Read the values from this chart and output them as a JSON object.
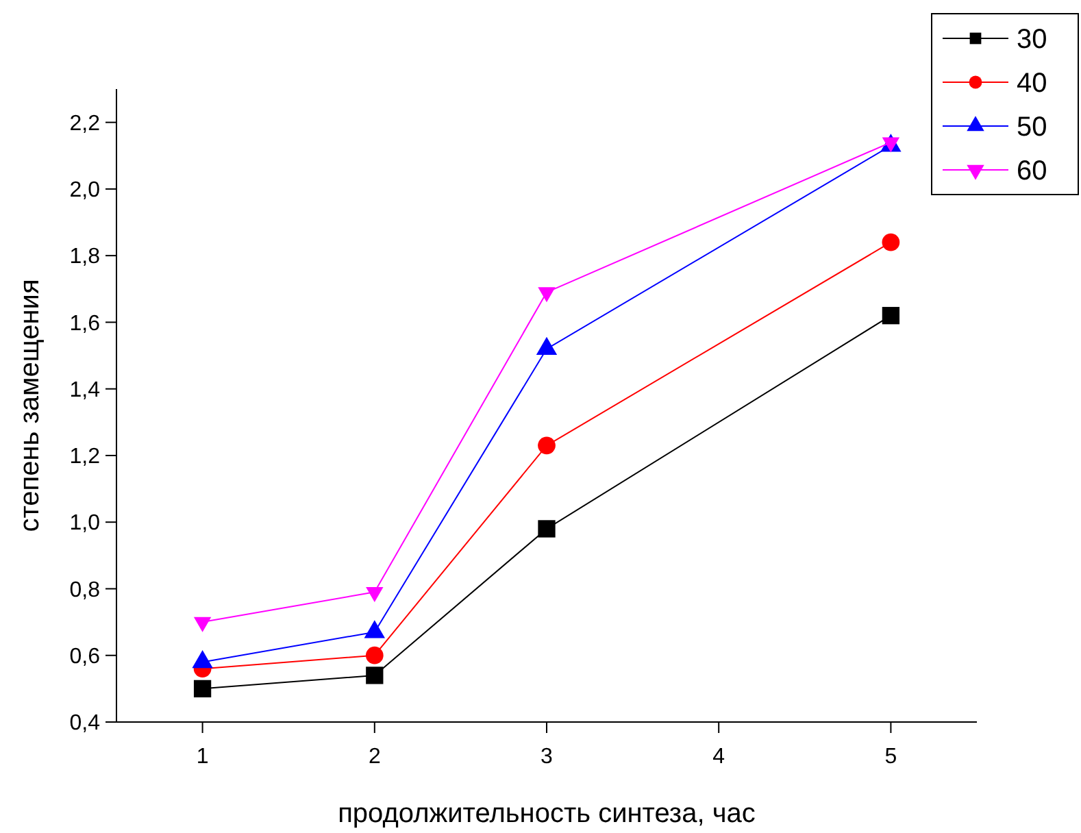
{
  "chart_data": {
    "type": "line",
    "xlabel": "продолжительность синтеза, час",
    "ylabel": "степень замещения",
    "x": [
      1,
      2,
      3,
      5
    ],
    "series": [
      {
        "name": "30",
        "color": "#000000",
        "marker": "square",
        "values": [
          0.5,
          0.54,
          0.98,
          1.62
        ]
      },
      {
        "name": "40",
        "color": "#ff0000",
        "marker": "circle",
        "values": [
          0.56,
          0.6,
          1.23,
          1.84
        ]
      },
      {
        "name": "50",
        "color": "#0000ff",
        "marker": "triangle",
        "values": [
          0.58,
          0.67,
          1.52,
          2.13
        ]
      },
      {
        "name": "60",
        "color": "#ff00ff",
        "marker": "triangle-down",
        "values": [
          0.7,
          0.79,
          1.69,
          2.14
        ]
      }
    ],
    "xlim": [
      0.5,
      5.5
    ],
    "xticks": [
      1,
      2,
      3,
      4,
      5
    ],
    "ylim": [
      0.4,
      2.3
    ],
    "yticks": [
      {
        "value": 0.4,
        "label": "0,4"
      },
      {
        "value": 0.6,
        "label": "0,6"
      },
      {
        "value": 0.8,
        "label": "0,8"
      },
      {
        "value": 1.0,
        "label": "1,0"
      },
      {
        "value": 1.2,
        "label": "1,2"
      },
      {
        "value": 1.4,
        "label": "1,4"
      },
      {
        "value": 1.6,
        "label": "1,6"
      },
      {
        "value": 1.8,
        "label": "1,8"
      },
      {
        "value": 2.0,
        "label": "2,0"
      },
      {
        "value": 2.2,
        "label": "2,2"
      }
    ],
    "grid": false,
    "legend": "top right",
    "line_style": "solid"
  }
}
